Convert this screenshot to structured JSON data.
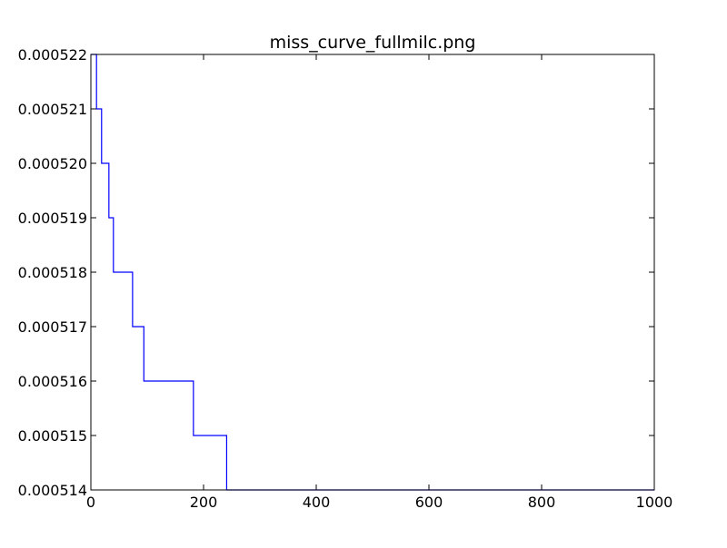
{
  "chart_data": {
    "type": "line",
    "title": "miss_curve_fullmilc.png",
    "xlabel": "",
    "ylabel": "",
    "xlim": [
      0,
      1000
    ],
    "ylim": [
      0.000514,
      0.000522
    ],
    "x_ticks": [
      0,
      200,
      400,
      600,
      800,
      1000
    ],
    "x_tick_labels": [
      "0",
      "200",
      "400",
      "600",
      "800",
      "1000"
    ],
    "y_ticks": [
      0.000514,
      0.000515,
      0.000516,
      0.000517,
      0.000518,
      0.000519,
      0.00052,
      0.000521,
      0.000522
    ],
    "y_tick_labels": [
      "0.000514",
      "0.000515",
      "0.000516",
      "0.000517",
      "0.000518",
      "0.000519",
      "0.000520",
      "0.000521",
      "0.000522"
    ],
    "grid": false,
    "legend": "none",
    "series": [
      {
        "color": "#0000ff",
        "step": "post",
        "x": [
          0,
          10,
          19,
          32,
          40,
          74,
          94,
          182,
          241,
          1000
        ],
        "y": [
          0.000522,
          0.000521,
          0.00052,
          0.000519,
          0.000518,
          0.000517,
          0.000516,
          0.000515,
          0.000514,
          0.000514
        ]
      }
    ]
  }
}
